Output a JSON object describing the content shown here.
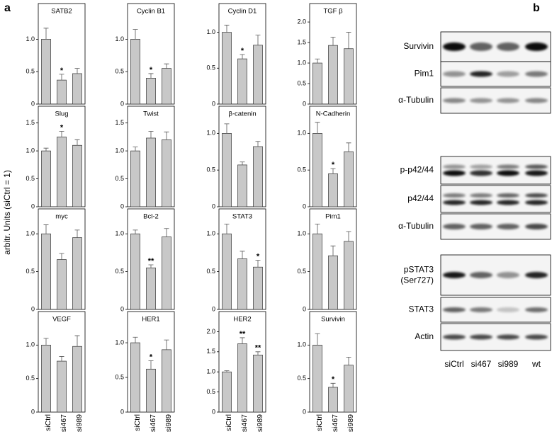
{
  "panel_a": {
    "label": "a",
    "y_axis_label": "arbitr. Units (siCtrl = 1)"
  },
  "chart_data": [
    {
      "type": "bar",
      "title": "SATB2",
      "values": [
        1.0,
        0.37,
        0.47
      ],
      "errors": [
        0.17,
        0.09,
        0.08
      ],
      "annotations": [
        null,
        "*",
        null
      ],
      "ylim": [
        0,
        1.55
      ],
      "yticks": [
        0,
        0.5,
        {
          "value": 1,
          "label": "1.0"
        }
      ],
      "color": "#c8c8c8"
    },
    {
      "type": "bar",
      "title": "Cyclin B1",
      "values": [
        1.0,
        0.4,
        0.55
      ],
      "errors": [
        0.15,
        0.07,
        0.07
      ],
      "annotations": [
        null,
        "*",
        null
      ],
      "ylim": [
        0,
        1.55
      ],
      "yticks": [
        0,
        0.5,
        {
          "value": 1,
          "label": "1.0"
        }
      ],
      "color": "#c8c8c8"
    },
    {
      "type": "bar",
      "title": "Cyclin D1",
      "values": [
        1.0,
        0.63,
        0.82
      ],
      "errors": [
        0.1,
        0.06,
        0.14
      ],
      "annotations": [
        null,
        "*",
        null
      ],
      "ylim": [
        0,
        1.4
      ],
      "yticks": [
        0,
        0.5,
        {
          "value": 1,
          "label": "1.0"
        }
      ],
      "color": "#c8c8c8"
    },
    {
      "type": "bar",
      "title": "TGF β",
      "values": [
        1.0,
        1.43,
        1.35
      ],
      "errors": [
        0.1,
        0.2,
        0.4
      ],
      "annotations": [
        null,
        null,
        null
      ],
      "ylim": [
        0,
        2.45
      ],
      "yticks": [
        0,
        0.5,
        {
          "value": 1,
          "label": "1.0"
        },
        1.5,
        {
          "value": 2,
          "label": "2.0"
        }
      ],
      "color": "#c8c8c8"
    },
    {
      "type": "bar",
      "title": "Slug",
      "values": [
        1.0,
        1.25,
        1.1
      ],
      "errors": [
        0.05,
        0.1,
        0.1
      ],
      "annotations": [
        null,
        "*",
        null
      ],
      "ylim": [
        0,
        1.8
      ],
      "yticks": [
        0,
        0.5,
        {
          "value": 1,
          "label": "1.0"
        },
        1.5
      ],
      "color": "#c8c8c8"
    },
    {
      "type": "bar",
      "title": "Twist",
      "values": [
        1.0,
        1.23,
        1.2
      ],
      "errors": [
        0.07,
        0.12,
        0.14
      ],
      "annotations": [
        null,
        null,
        null
      ],
      "ylim": [
        0,
        1.8
      ],
      "yticks": [
        0,
        0.5,
        {
          "value": 1,
          "label": "1.0"
        },
        1.5
      ],
      "color": "#c8c8c8"
    },
    {
      "type": "bar",
      "title": "β-catenin",
      "values": [
        1.0,
        0.57,
        0.82
      ],
      "errors": [
        0.13,
        0.04,
        0.07
      ],
      "annotations": [
        null,
        null,
        null
      ],
      "ylim": [
        0,
        1.37
      ],
      "yticks": [
        0,
        0.5,
        {
          "value": 1,
          "label": "1.0"
        }
      ],
      "color": "#c8c8c8"
    },
    {
      "type": "bar",
      "title": "N-Cadherin",
      "values": [
        1.0,
        0.45,
        0.75
      ],
      "errors": [
        0.15,
        0.07,
        0.12
      ],
      "annotations": [
        null,
        "*",
        null
      ],
      "ylim": [
        0,
        1.37
      ],
      "yticks": [
        0,
        0.5,
        {
          "value": 1,
          "label": "1.0"
        }
      ],
      "color": "#c8c8c8"
    },
    {
      "type": "bar",
      "title": "myc",
      "values": [
        1.0,
        0.66,
        0.95
      ],
      "errors": [
        0.12,
        0.08,
        0.1
      ],
      "annotations": [
        null,
        null,
        null
      ],
      "ylim": [
        0,
        1.33
      ],
      "yticks": [
        0,
        0.5,
        {
          "value": 1,
          "label": "1.0"
        }
      ],
      "color": "#c8c8c8"
    },
    {
      "type": "bar",
      "title": "Bcl-2",
      "values": [
        1.0,
        0.55,
        0.96
      ],
      "errors": [
        0.05,
        0.04,
        0.11
      ],
      "annotations": [
        null,
        "**",
        null
      ],
      "ylim": [
        0,
        1.33
      ],
      "yticks": [
        0,
        0.5,
        {
          "value": 1,
          "label": "1.0"
        }
      ],
      "color": "#c8c8c8"
    },
    {
      "type": "bar",
      "title": "STAT3",
      "values": [
        1.0,
        0.67,
        0.56
      ],
      "errors": [
        0.13,
        0.1,
        0.09
      ],
      "annotations": [
        null,
        null,
        "*"
      ],
      "ylim": [
        0,
        1.33
      ],
      "yticks": [
        0,
        0.5,
        {
          "value": 1,
          "label": "1.0"
        }
      ],
      "color": "#c8c8c8"
    },
    {
      "type": "bar",
      "title": "Pim1",
      "values": [
        1.0,
        0.71,
        0.9
      ],
      "errors": [
        0.13,
        0.13,
        0.13
      ],
      "annotations": [
        null,
        null,
        null
      ],
      "ylim": [
        0,
        1.33
      ],
      "yticks": [
        0,
        0.5,
        {
          "value": 1,
          "label": "1.0"
        }
      ],
      "color": "#c8c8c8"
    },
    {
      "type": "bar",
      "title": "VEGF",
      "categories": [
        "siCtrl",
        "si467",
        "si989"
      ],
      "values": [
        1.0,
        0.76,
        0.98
      ],
      "errors": [
        0.1,
        0.07,
        0.16
      ],
      "annotations": [
        null,
        null,
        null
      ],
      "ylim": [
        0,
        1.5
      ],
      "yticks": [
        0,
        0.5,
        {
          "value": 1,
          "label": "1.0"
        }
      ],
      "color": "#c8c8c8"
    },
    {
      "type": "bar",
      "title": "HER1",
      "categories": [
        "siCtrl",
        "si467",
        "si989"
      ],
      "values": [
        1.0,
        0.62,
        0.9
      ],
      "errors": [
        0.08,
        0.12,
        0.14
      ],
      "annotations": [
        null,
        "*",
        null
      ],
      "ylim": [
        0,
        1.45
      ],
      "yticks": [
        0,
        0.5,
        {
          "value": 1,
          "label": "1.0"
        }
      ],
      "color": "#c8c8c8"
    },
    {
      "type": "bar",
      "title": "HER2",
      "categories": [
        "siCtrl",
        "si467",
        "si989"
      ],
      "values": [
        1.0,
        1.7,
        1.42
      ],
      "errors": [
        0.03,
        0.15,
        0.08
      ],
      "annotations": [
        null,
        "**",
        "**"
      ],
      "ylim": [
        0,
        2.5
      ],
      "yticks": [
        0,
        0.5,
        {
          "value": 1,
          "label": "1.0"
        },
        1.5,
        {
          "value": 2,
          "label": "2.0"
        }
      ],
      "color": "#c8c8c8"
    },
    {
      "type": "bar",
      "title": "Survivin",
      "categories": [
        "siCtrl",
        "si467",
        "si989"
      ],
      "values": [
        1.0,
        0.37,
        0.7
      ],
      "errors": [
        0.17,
        0.06,
        0.12
      ],
      "annotations": [
        null,
        "*",
        null
      ],
      "ylim": [
        0,
        1.5
      ],
      "yticks": [
        0,
        0.5,
        {
          "value": 1,
          "label": "1.0"
        }
      ],
      "color": "#c8c8c8"
    }
  ],
  "panel_b": {
    "label": "b",
    "blots": [
      {
        "label": "Survivin"
      },
      {
        "label": "Pim1"
      },
      {
        "label": "α-Tubulin"
      },
      {
        "label": "p-p42/44"
      },
      {
        "label": "p42/44"
      },
      {
        "label": "α-Tubulin"
      },
      {
        "label": "pSTAT3",
        "sublabel": "(Ser727)"
      },
      {
        "label": "STAT3"
      },
      {
        "label": "Actin"
      }
    ],
    "lanes": [
      "siCtrl",
      "si467",
      "si989",
      "wt"
    ]
  }
}
